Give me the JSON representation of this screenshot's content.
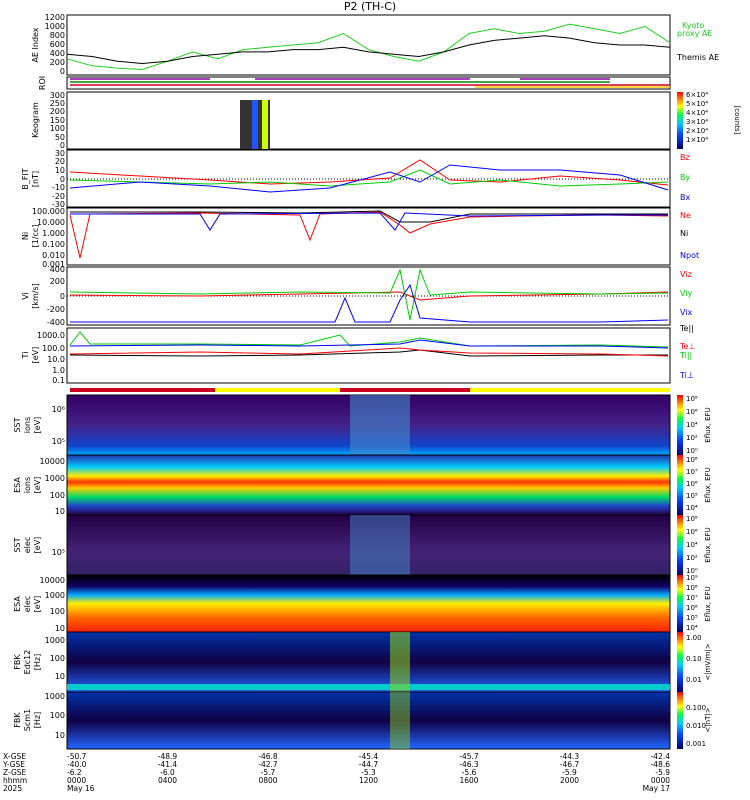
{
  "page_title": "P2 (TH-C)",
  "colors": {
    "kyoto": "#22cc22",
    "themis": "#000000",
    "red": "#ff0000",
    "green": "#00cc00",
    "blue": "#0000ff",
    "roi_purple": "#8800aa",
    "roi_green": "#008800",
    "mode_red": "#cc0022",
    "mode_yellow": "#ffff00"
  },
  "panels": {
    "ae": {
      "ylabel": "AE Index",
      "ticks": [
        "1200",
        "1000",
        "800",
        "600",
        "400",
        "200",
        "0"
      ],
      "legend": [
        {
          "text": "Kyoto",
          "color": "#22cc22"
        },
        {
          "text": "proxy AE",
          "color": "#22cc22"
        },
        {
          "text": "Themis AE",
          "color": "#000000"
        }
      ]
    },
    "roi": {
      "ylabel": "ROI"
    },
    "keogram": {
      "ylabel": "Keogram",
      "ticks": [
        "300",
        "250",
        "200",
        "150",
        "100",
        "50",
        "0"
      ],
      "cbar_ticks": [
        "6×10⁴",
        "5×10⁴",
        "4×10⁴",
        "3×10⁴",
        "2×10⁴",
        "1×10⁴"
      ],
      "cbar_unit": "[counts]"
    },
    "bfield": {
      "ylabel": "B_FIT",
      "ylabel2": "[nT]",
      "ticks": [
        "30",
        "20",
        "10",
        "0",
        "-10",
        "-20",
        "-30"
      ],
      "legend": [
        {
          "text": "Bz",
          "color": "#ff0000"
        },
        {
          "text": "By",
          "color": "#00cc00"
        },
        {
          "text": "Bx",
          "color": "#0000ff"
        }
      ]
    },
    "density": {
      "ylabel": "Ni",
      "ylabel2": "[1/cc]",
      "ticks": [
        "100.000",
        "10.000",
        "1.000",
        "0.100",
        "0.010",
        "0.001"
      ],
      "legend": [
        {
          "text": "Ne",
          "color": "#ff0000"
        },
        {
          "text": "Ni",
          "color": "#000000"
        },
        {
          "text": "Npot",
          "color": "#0000ff"
        }
      ]
    },
    "velocity": {
      "ylabel": "Vi",
      "ylabel2": "[km/s]",
      "ticks": [
        "400",
        "200",
        "0",
        "-200",
        "-400"
      ],
      "legend": [
        {
          "text": "Viz",
          "color": "#ff0000"
        },
        {
          "text": "Viy",
          "color": "#00cc00"
        },
        {
          "text": "Vix",
          "color": "#0000ff"
        }
      ]
    },
    "temperature": {
      "ylabel": "Ti",
      "ylabel2": "[eV]",
      "ticks": [
        "1000.0",
        "100.0",
        "10.0",
        "1.0",
        "0.1"
      ],
      "legend": [
        {
          "text": "Te||",
          "color": "#000000"
        },
        {
          "text": "Te⊥",
          "color": "#ff0000"
        },
        {
          "text": "Ti||",
          "color": "#00cc00"
        },
        {
          "text": "Ti⊥",
          "color": "#0000ff"
        }
      ]
    },
    "sst_ion": {
      "ylabel": "SST",
      "ylabel2": "ions",
      "ylabel3": "[eV]",
      "ticks": [
        "10⁶",
        "10⁵"
      ],
      "cbar_ticks": [
        "10⁸",
        "10⁶",
        "10⁴",
        "10²",
        "10⁰"
      ],
      "cbar_label": "Eflux, EFU"
    },
    "esa_ion": {
      "ylabel": "ESA",
      "ylabel2": "ions",
      "ylabel3": "[eV]",
      "ticks": [
        "10000",
        "1000",
        "100",
        "10"
      ],
      "cbar_ticks": [
        "10⁸",
        "10⁷",
        "10⁶",
        "10⁵",
        "10⁴"
      ],
      "cbar_label": "Eflux, EFU"
    },
    "sst_elec": {
      "ylabel": "SST",
      "ylabel2": "elec",
      "ylabel3": "[eV]",
      "ticks": [
        "10⁵"
      ],
      "cbar_ticks": [
        "10⁸",
        "10⁶",
        "10⁴",
        "10²",
        "10⁰"
      ],
      "cbar_label": "Eflux, EFU"
    },
    "esa_elec": {
      "ylabel": "ESA",
      "ylabel2": "elec",
      "ylabel3": "[eV]",
      "ticks": [
        "10000",
        "1000",
        "100",
        "10"
      ],
      "cbar_ticks": [
        "10⁹",
        "10⁸",
        "10⁷",
        "10⁶",
        "10⁵",
        "10⁴"
      ],
      "cbar_label": "Eflux, EFU"
    },
    "fbk_e": {
      "ylabel": "FBK",
      "ylabel2": "Edc12",
      "ylabel3": "[Hz]",
      "ticks": [
        "1000",
        "100",
        "10"
      ],
      "cbar_ticks": [
        "1.00",
        "0.10",
        "0.01"
      ],
      "cbar_label": "<|mV/m|>"
    },
    "fbk_b": {
      "ylabel": "FBK",
      "ylabel2": "Scm1",
      "ylabel3": "[Hz]",
      "ticks": [
        "1000",
        "100",
        "10"
      ],
      "cbar_ticks": [
        "0.100",
        "0.010",
        "0.001"
      ],
      "cbar_label": "<|nT|>"
    }
  },
  "ephemeris": {
    "row_labels": [
      "X-GSE",
      "Y-GSE",
      "Z-GSE",
      "hhmm",
      "2025"
    ],
    "columns": [
      {
        "x": "-50.7",
        "y": "-40.0",
        "z": "-6.2",
        "t": "0000",
        "d": "May 16"
      },
      {
        "x": "-48.9",
        "y": "-41.4",
        "z": "-6.0",
        "t": "0400",
        "d": ""
      },
      {
        "x": "-46.8",
        "y": "-42.7",
        "z": "-5.7",
        "t": "0800",
        "d": ""
      },
      {
        "x": "-45.4",
        "y": "-44.7",
        "z": "-5.3",
        "t": "1200",
        "d": ""
      },
      {
        "x": "-45.7",
        "y": "-46.3",
        "z": "-5.6",
        "t": "1600",
        "d": ""
      },
      {
        "x": "-44.3",
        "y": "-46.7",
        "z": "-5.9",
        "t": "2000",
        "d": ""
      },
      {
        "x": "-42.4",
        "y": "-48.6",
        "z": "-5.9",
        "t": "0000",
        "d": "May 17"
      }
    ]
  },
  "chart_data": {
    "type": "line",
    "x_range_hours": [
      0,
      24
    ],
    "series_ae": [
      {
        "name": "Kyoto proxy AE",
        "hours": [
          0,
          1,
          2,
          3,
          4,
          5,
          6,
          7,
          8,
          9,
          10,
          11,
          12,
          13,
          14,
          15,
          16,
          17,
          18,
          19,
          20,
          21,
          22,
          23,
          24
        ],
        "values": [
          350,
          200,
          150,
          120,
          300,
          500,
          350,
          550,
          600,
          650,
          700,
          900,
          550,
          400,
          300,
          500,
          900,
          1000,
          900,
          950,
          1100,
          1000,
          900,
          1050,
          700
        ]
      },
      {
        "name": "Themis AE",
        "hours": [
          0,
          1,
          2,
          3,
          4,
          5,
          6,
          7,
          8,
          9,
          10,
          11,
          12,
          13,
          14,
          15,
          16,
          17,
          18,
          19,
          20,
          21,
          22,
          23,
          24
        ],
        "values": [
          450,
          400,
          300,
          250,
          300,
          400,
          450,
          500,
          500,
          550,
          550,
          600,
          500,
          450,
          400,
          500,
          650,
          750,
          800,
          850,
          800,
          700,
          650,
          650,
          600
        ]
      }
    ]
  }
}
